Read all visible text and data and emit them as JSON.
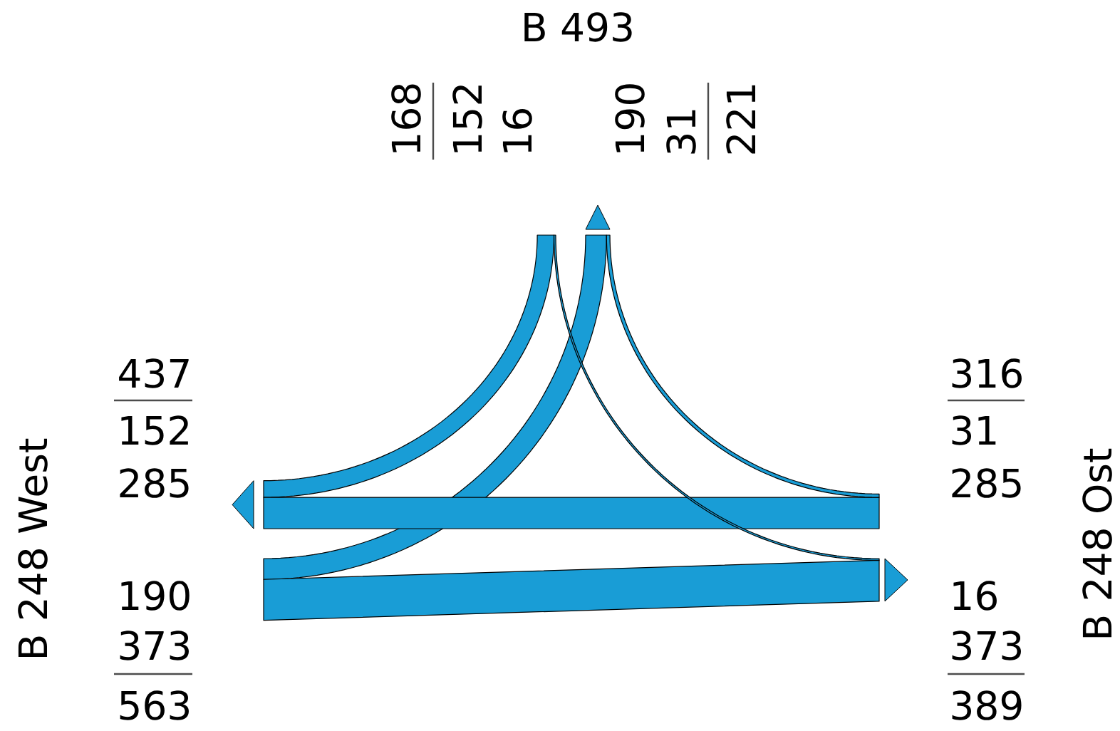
{
  "chart_data": {
    "type": "other",
    "categories": [
      "B 493",
      "B 248 West",
      "B 248 Ost"
    ],
    "series": [
      {
        "color": "#199dd6",
        "values": [
          null,
          152,
          16
        ]
      },
      {
        "color": "#199dd6",
        "values": [
          190,
          null,
          373
        ]
      },
      {
        "color": "#199dd6",
        "values": [
          31,
          285,
          null
        ]
      }
    ],
    "data_labels": true,
    "totals": [
      "168",
      "221",
      "563",
      "437",
      "316",
      "389"
    ],
    "annotations": [
      "152",
      "16",
      "190",
      "373",
      "31",
      "285"
    ]
  }
}
